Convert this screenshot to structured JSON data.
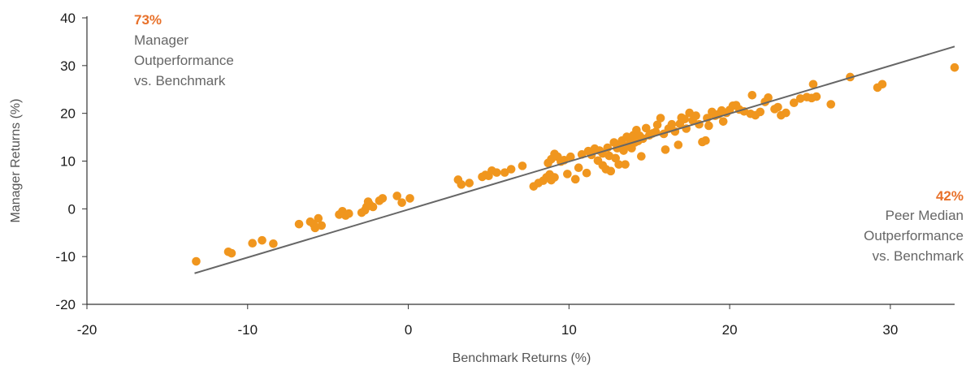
{
  "chart_data": {
    "type": "scatter",
    "xlabel": "Benchmark Returns (%)",
    "ylabel": "Manager Returns (%)",
    "xlim": [
      -20,
      34
    ],
    "ylim": [
      -20,
      40
    ],
    "xticks": [
      "-20",
      "-10",
      "0",
      "10",
      "20",
      "30"
    ],
    "yticks": [
      "-20",
      "-10",
      "0",
      "10",
      "20",
      "30",
      "40"
    ],
    "grid": false,
    "colors": {
      "points": "#F0961E",
      "line": "#666666",
      "highlight": "#E8712A",
      "axis": "#333333"
    },
    "reference_line": {
      "from": [
        -13.3,
        -13.5
      ],
      "to": [
        34,
        34
      ]
    },
    "annotations": [
      {
        "percent": "73%",
        "lines": [
          "Manager",
          "Outperformance",
          "vs. Benchmark"
        ],
        "position": "top-left"
      },
      {
        "percent": "42%",
        "lines": [
          "Peer Median",
          "Outperformance",
          "vs. Benchmark"
        ],
        "position": "right"
      }
    ],
    "points": [
      [
        -13.2,
        -11
      ],
      [
        -11.2,
        -9
      ],
      [
        -11,
        -9.3
      ],
      [
        -9.7,
        -7.2
      ],
      [
        -9.1,
        -6.6
      ],
      [
        -8.4,
        -7.3
      ],
      [
        -6.8,
        -3.2
      ],
      [
        -6.1,
        -2.7
      ],
      [
        -5.8,
        -4
      ],
      [
        -5.6,
        -2
      ],
      [
        -5.4,
        -3.5
      ],
      [
        -5.9,
        -3.2
      ],
      [
        -4.3,
        -1.2
      ],
      [
        -4.1,
        -0.5
      ],
      [
        -3.9,
        -1.4
      ],
      [
        -3.7,
        -1
      ],
      [
        -2.9,
        -0.8
      ],
      [
        -2.7,
        -0.3
      ],
      [
        -2.6,
        0.4
      ],
      [
        -2.5,
        1.5
      ],
      [
        -2.4,
        0.9
      ],
      [
        -2.2,
        0.4
      ],
      [
        -1.8,
        1.7
      ],
      [
        -1.6,
        2.2
      ],
      [
        -0.7,
        2.7
      ],
      [
        -0.4,
        1.3
      ],
      [
        0.1,
        2.2
      ],
      [
        3.1,
        6.1
      ],
      [
        3.3,
        5.1
      ],
      [
        3.8,
        5.4
      ],
      [
        4.6,
        6.7
      ],
      [
        4.8,
        7.1
      ],
      [
        5,
        6.9
      ],
      [
        5.2,
        8
      ],
      [
        5.5,
        7.6
      ],
      [
        6,
        7.6
      ],
      [
        6.4,
        8.3
      ],
      [
        7.1,
        9
      ],
      [
        7.8,
        4.7
      ],
      [
        8.1,
        5.4
      ],
      [
        8.4,
        5.9
      ],
      [
        8.6,
        6.6
      ],
      [
        8.8,
        7.2
      ],
      [
        8.9,
        6
      ],
      [
        9.1,
        6.6
      ],
      [
        8.7,
        9.6
      ],
      [
        8.9,
        10.4
      ],
      [
        9.1,
        11.5
      ],
      [
        9.3,
        10.9
      ],
      [
        9.5,
        9.9
      ],
      [
        9.7,
        10.2
      ],
      [
        9.9,
        7.3
      ],
      [
        10.1,
        10.9
      ],
      [
        10.4,
        6.2
      ],
      [
        10.6,
        8.6
      ],
      [
        10.8,
        11.4
      ],
      [
        11.1,
        7.5
      ],
      [
        11.2,
        12.1
      ],
      [
        11.4,
        11.3
      ],
      [
        11.6,
        12.6
      ],
      [
        11.8,
        10.1
      ],
      [
        11.9,
        12.2
      ],
      [
        12.1,
        9.1
      ],
      [
        12.1,
        11.6
      ],
      [
        12.3,
        8.3
      ],
      [
        12.4,
        12.8
      ],
      [
        12.5,
        11.1
      ],
      [
        12.6,
        7.9
      ],
      [
        12.8,
        13.9
      ],
      [
        12.9,
        10.6
      ],
      [
        13,
        12.7
      ],
      [
        13.1,
        9.3
      ],
      [
        13.2,
        13.5
      ],
      [
        13.3,
        14.3
      ],
      [
        13.4,
        12.2
      ],
      [
        13.5,
        9.3
      ],
      [
        13.6,
        15.1
      ],
      [
        13.7,
        13.3
      ],
      [
        13.8,
        14.6
      ],
      [
        13.9,
        12.7
      ],
      [
        14,
        15.4
      ],
      [
        14.1,
        13.9
      ],
      [
        14.2,
        16.5
      ],
      [
        14.3,
        14.2
      ],
      [
        14.4,
        15.3
      ],
      [
        14.5,
        11
      ],
      [
        14.6,
        14.7
      ],
      [
        14.8,
        16.9
      ],
      [
        15,
        15.4
      ],
      [
        15.2,
        15.8
      ],
      [
        15.4,
        16.1
      ],
      [
        15.5,
        17.6
      ],
      [
        15.7,
        19
      ],
      [
        15.9,
        15.7
      ],
      [
        16,
        12.4
      ],
      [
        16.2,
        16.8
      ],
      [
        16.4,
        17.7
      ],
      [
        16.6,
        16.2
      ],
      [
        16.8,
        13.4
      ],
      [
        16.9,
        17.8
      ],
      [
        17,
        19.1
      ],
      [
        17.2,
        18.8
      ],
      [
        17.3,
        16.8
      ],
      [
        17.5,
        20.1
      ],
      [
        17.7,
        18.5
      ],
      [
        17.9,
        19.5
      ],
      [
        18.1,
        17.7
      ],
      [
        18.3,
        14
      ],
      [
        18.5,
        14.3
      ],
      [
        18.6,
        19
      ],
      [
        18.7,
        17.4
      ],
      [
        18.9,
        20.3
      ],
      [
        19.1,
        19.5
      ],
      [
        19.3,
        19.8
      ],
      [
        19.5,
        20.6
      ],
      [
        19.6,
        18.3
      ],
      [
        19.8,
        20.1
      ],
      [
        20,
        20.7
      ],
      [
        20.2,
        21.6
      ],
      [
        20.4,
        21.7
      ],
      [
        20.6,
        20.8
      ],
      [
        20.9,
        20.4
      ],
      [
        21.3,
        19.9
      ],
      [
        21.4,
        23.8
      ],
      [
        21.6,
        19.6
      ],
      [
        21.9,
        20.3
      ],
      [
        22.2,
        22.4
      ],
      [
        22.4,
        23.3
      ],
      [
        22.8,
        20.9
      ],
      [
        23,
        21.3
      ],
      [
        23.2,
        19.6
      ],
      [
        23.5,
        20.1
      ],
      [
        24,
        22.2
      ],
      [
        24.4,
        23.1
      ],
      [
        24.8,
        23.4
      ],
      [
        25.1,
        23.2
      ],
      [
        25.2,
        26.1
      ],
      [
        25.4,
        23.5
      ],
      [
        26.3,
        21.9
      ],
      [
        27.5,
        27.6
      ],
      [
        29.2,
        25.4
      ],
      [
        29.5,
        26.1
      ],
      [
        34,
        29.6
      ]
    ]
  }
}
